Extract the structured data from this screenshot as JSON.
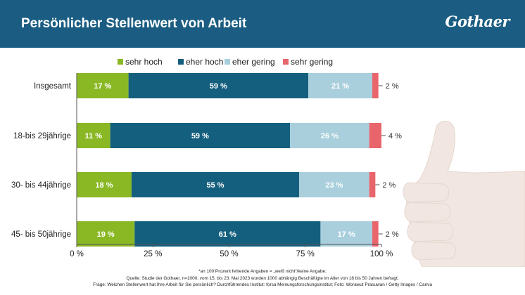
{
  "header": {
    "title": "Persönlicher Stellenwert von Arbeit",
    "logo": "Gothaer"
  },
  "chart_data": {
    "type": "bar",
    "orientation": "horizontal",
    "stacked": true,
    "categories": [
      "Insgesamt",
      "18-bis 29jährige",
      "30- bis 44jährige",
      "45- bis 50jährige"
    ],
    "series": [
      {
        "name": "sehr hoch",
        "values": [
          17,
          11,
          18,
          19
        ],
        "labels": [
          "17 %",
          "11 %",
          "18 %",
          "19 %"
        ]
      },
      {
        "name": "eher hoch",
        "values": [
          59,
          59,
          55,
          61
        ],
        "labels": [
          "59 %",
          "59 %",
          "55 %",
          "61 %"
        ]
      },
      {
        "name": "eher gering",
        "values": [
          21,
          26,
          23,
          17
        ],
        "labels": [
          "21 %",
          "26 %",
          "23 %",
          "17 %"
        ]
      },
      {
        "name": "sehr gering",
        "values": [
          2,
          4,
          2,
          2
        ],
        "labels": [
          "2 %",
          "4 %",
          "2 %",
          "2 %"
        ]
      }
    ],
    "xlim": [
      0,
      100
    ],
    "ticks": [
      0,
      25,
      50,
      75,
      100
    ],
    "tick_labels": [
      "0 %",
      "25 %",
      "50 %",
      "75 %",
      "100 %"
    ],
    "legend_position": "top",
    "grid": false
  },
  "colors": {
    "header_bg": "#1b5d82",
    "sehr_hoch": "#8ab825",
    "eher_hoch": "#155f7e",
    "eher_gering": "#a9cfdd",
    "sehr_gering": "#e8656b"
  },
  "footer": {
    "line1": "*an 100 Prozent fehlende Angaben = „weiß nicht“/keine Angabe;",
    "line2": "Quelle: Studie der Gothaer, n=1000, vom 15. bis 23. Mai 2023 wurden 1000 abhängig Beschäftigte im Alter von 18 bis 50 Jahren befragt;",
    "line3": "Frage: Welchen Stellenwert hat Ihre Arbeit für Sie persönlich? Durchführendes Institut: forsa Meinungsforschungsinstitut; Foto: Worawut Prasuwan / Getty Images / Canva"
  }
}
